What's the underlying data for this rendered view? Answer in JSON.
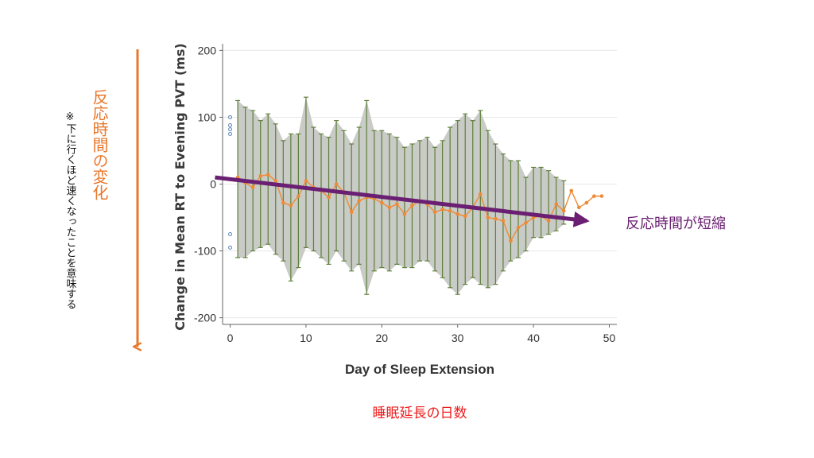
{
  "colors": {
    "band": "#c9cbc6",
    "errorbar": "#5e7e3a",
    "series": "#ee8a35",
    "trend": "#6a1f72",
    "side_arrow": "#e8782c",
    "side_label": "#e8782c",
    "caption": "#ee1c1c",
    "outlier": "#5b86b8",
    "note": "#111111"
  },
  "annotations": {
    "side_label": "反応時間の変化",
    "note": "※下に行くほど速くなったことを意味する",
    "trend_label": "反応時間が短縮",
    "caption": "睡眠延長の日数"
  },
  "chart_data": {
    "type": "line",
    "title": "",
    "xlabel": "Day of Sleep Extension",
    "ylabel": "Change in Mean RT to Evening PVT (ms)",
    "xlim": [
      -1,
      51
    ],
    "ylim": [
      -210,
      210
    ],
    "xticks": [
      0,
      10,
      20,
      30,
      40,
      50
    ],
    "yticks": [
      200,
      100,
      0,
      -100,
      -200
    ],
    "grid": "horizontal",
    "series": [
      {
        "x": [
          1,
          2,
          3,
          4,
          5,
          6,
          7,
          8,
          9,
          10,
          11,
          12,
          13,
          14,
          15,
          16,
          17,
          18,
          19,
          20,
          21,
          22,
          23,
          24,
          25,
          26,
          27,
          28,
          29,
          30,
          31,
          32,
          33,
          34,
          35,
          36,
          37,
          38,
          39,
          40,
          41,
          42,
          43,
          44,
          45,
          46,
          47,
          48,
          49
        ],
        "y": [
          10,
          2,
          -5,
          12,
          14,
          5,
          -28,
          -32,
          -18,
          5,
          -5,
          -10,
          -20,
          0,
          -12,
          -42,
          -25,
          -20,
          -22,
          -28,
          -35,
          -30,
          -45,
          -32,
          -25,
          -30,
          -42,
          -38,
          -40,
          -45,
          -48,
          -35,
          -15,
          -50,
          -52,
          -55,
          -85,
          -65,
          -58,
          -50,
          -48,
          -55,
          -30,
          -40,
          -10,
          -35,
          -28,
          -18,
          -18
        ],
        "err_low": [
          -110,
          -110,
          -100,
          -95,
          -90,
          -105,
          -115,
          -145,
          -125,
          -95,
          -100,
          -110,
          -120,
          -100,
          -115,
          -130,
          -120,
          -165,
          -130,
          -125,
          -130,
          -120,
          -125,
          -125,
          -115,
          -115,
          -130,
          -140,
          -155,
          -165,
          -150,
          -140,
          -150,
          -155,
          -150,
          -130,
          -115,
          -110,
          -100,
          -80,
          -80,
          -75,
          -70,
          -60,
          null,
          null,
          null,
          null,
          null
        ],
        "err_high": [
          125,
          115,
          110,
          95,
          105,
          90,
          65,
          75,
          75,
          130,
          85,
          75,
          70,
          95,
          80,
          60,
          85,
          125,
          80,
          80,
          75,
          70,
          55,
          60,
          65,
          70,
          55,
          65,
          85,
          95,
          105,
          95,
          110,
          80,
          60,
          45,
          35,
          35,
          10,
          25,
          25,
          20,
          10,
          5,
          null,
          null,
          null,
          null,
          null
        ]
      }
    ],
    "outliers_day0": [
      100,
      88,
      82,
      75,
      -75,
      -95
    ],
    "trend_line": {
      "x": [
        -2,
        47
      ],
      "y": [
        10,
        -55
      ]
    }
  }
}
